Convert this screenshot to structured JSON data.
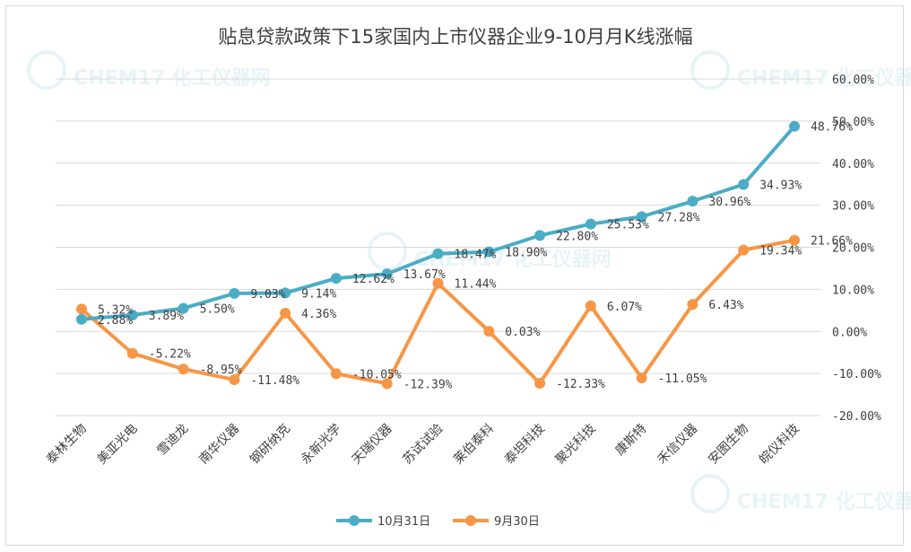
{
  "chart_data": {
    "type": "line",
    "title": "贴息贷款政策下15家国内上市仪器企业9-10月月K线涨幅",
    "categories": [
      "泰林生物",
      "美亚光电",
      "雪迪龙",
      "南华仪器",
      "钢研纳克",
      "永新光学",
      "天瑞仪器",
      "苏试试验",
      "莱伯泰科",
      "泰坦科技",
      "聚光科技",
      "康斯特",
      "禾信仪器",
      "安图生物",
      "皖仪科技"
    ],
    "series": [
      {
        "name": "10月31日",
        "color": "#4bacc6",
        "values": [
          2.88,
          3.89,
          5.5,
          9.03,
          9.14,
          12.62,
          13.67,
          18.47,
          18.9,
          22.8,
          25.53,
          27.28,
          30.96,
          34.93,
          48.76
        ],
        "labels": [
          "2.88%",
          "3.89%",
          "5.50%",
          "9.03%",
          "9.14%",
          "12.62%",
          "13.67%",
          "18.47%",
          "18.90%",
          "22.80%",
          "25.53%",
          "27.28%",
          "30.96%",
          "34.93%",
          "48.76%"
        ]
      },
      {
        "name": "9月30日",
        "color": "#f79646",
        "values": [
          5.32,
          -5.22,
          -8.95,
          -11.48,
          4.36,
          -10.05,
          -12.39,
          11.44,
          0.03,
          -12.33,
          6.07,
          -11.05,
          6.43,
          19.34,
          21.66
        ],
        "labels": [
          "5.32%",
          "-5.22%",
          "-8.95%",
          "-11.48%",
          "4.36%",
          "-10.05%",
          "-12.39%",
          "11.44%",
          "0.03%",
          "-12.33%",
          "6.07%",
          "-11.05%",
          "6.43%",
          "19.34%",
          "21.66%"
        ]
      }
    ],
    "y_axis": {
      "position": "right",
      "ylim": [
        -20,
        60
      ],
      "ticks": [
        60,
        50,
        40,
        30,
        20,
        10,
        0,
        -10,
        -20
      ],
      "tick_labels": [
        "60.00%",
        "50.00%",
        "40.00%",
        "30.00%",
        "20.00%",
        "10.00%",
        "0.00%",
        "-10.00%",
        "-20.00%"
      ]
    },
    "grid": true,
    "legend": "bottom-center",
    "watermark": "CHEM17 化工仪器网"
  }
}
